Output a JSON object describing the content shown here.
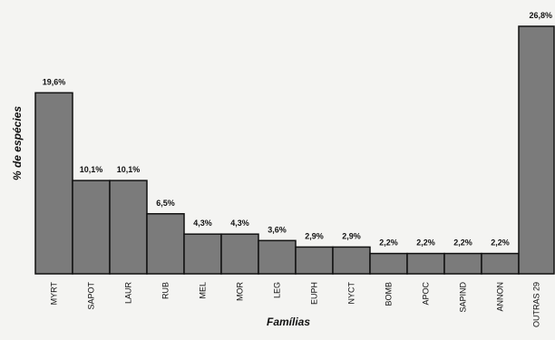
{
  "chart_data": {
    "type": "bar",
    "title": "",
    "xlabel": "Famílias",
    "ylabel": "% de espécies",
    "ylim": [
      0,
      28
    ],
    "grid": false,
    "categories": [
      "MYRT",
      "SAPOT",
      "LAUR",
      "RUB",
      "MEL",
      "MOR",
      "LEG",
      "EUPH",
      "NYCT",
      "BOMB",
      "APOC",
      "SAPIND",
      "ANNON",
      "OUTRAS 29"
    ],
    "values": [
      19.6,
      10.1,
      10.1,
      6.5,
      4.3,
      4.3,
      3.6,
      2.9,
      2.9,
      2.2,
      2.2,
      2.2,
      2.2,
      26.8
    ],
    "value_labels": [
      "19,6%",
      "10,1%",
      "10,1%",
      "6,5%",
      "4,3%",
      "4,3%",
      "3,6%",
      "2,9%",
      "2,9%",
      "2,2%",
      "2,2%",
      "2,2%",
      "2,2%",
      "26,8%"
    ],
    "bar_color": "#7b7b7b",
    "bar_edge_color": "#111111"
  }
}
